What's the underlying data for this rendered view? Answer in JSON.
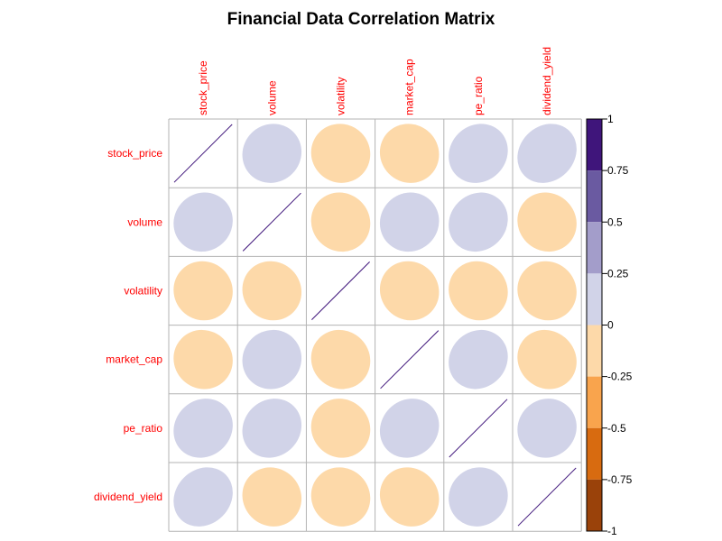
{
  "chart_data": {
    "type": "heatmap",
    "subtype": "ellipse-correlation-matrix",
    "title": "Financial Data Correlation Matrix",
    "variables": [
      "stock_price",
      "volume",
      "volatility",
      "market_cap",
      "pe_ratio",
      "dividend_yield"
    ],
    "matrix": [
      [
        1.0,
        0.05,
        -0.03,
        -0.04,
        0.1,
        0.15
      ],
      [
        0.05,
        1.0,
        -0.05,
        0.04,
        0.1,
        -0.06
      ],
      [
        -0.03,
        -0.05,
        1.0,
        -0.05,
        -0.05,
        -0.05
      ],
      [
        -0.04,
        0.04,
        -0.05,
        1.0,
        0.1,
        -0.08
      ],
      [
        0.1,
        0.1,
        -0.05,
        0.1,
        1.0,
        0.05
      ],
      [
        0.15,
        -0.06,
        -0.05,
        -0.08,
        0.05,
        1.0
      ]
    ],
    "colorbar": {
      "range": [
        -1,
        1
      ],
      "ticks": [
        "1",
        "0.75",
        "0.5",
        "0.25",
        "0",
        "-0.25",
        "-0.5",
        "-0.75",
        "-1"
      ],
      "bins": [
        {
          "from": 0.75,
          "to": 1.0,
          "color": "#3f157b"
        },
        {
          "from": 0.5,
          "to": 0.75,
          "color": "#6a5aa1"
        },
        {
          "from": 0.25,
          "to": 0.5,
          "color": "#a39dca"
        },
        {
          "from": 0.0,
          "to": 0.25,
          "color": "#d1d3e8"
        },
        {
          "from": -0.25,
          "to": 0.0,
          "color": "#fdd9a9"
        },
        {
          "from": -0.5,
          "to": -0.25,
          "color": "#f9a44d"
        },
        {
          "from": -0.75,
          "to": -0.5,
          "color": "#d86b10"
        },
        {
          "from": -1.0,
          "to": -0.75,
          "color": "#9a420a"
        }
      ]
    },
    "colors": {
      "label": "#ff0000",
      "grid": "#b3b3b3",
      "diagonal": "#3f157b"
    }
  }
}
